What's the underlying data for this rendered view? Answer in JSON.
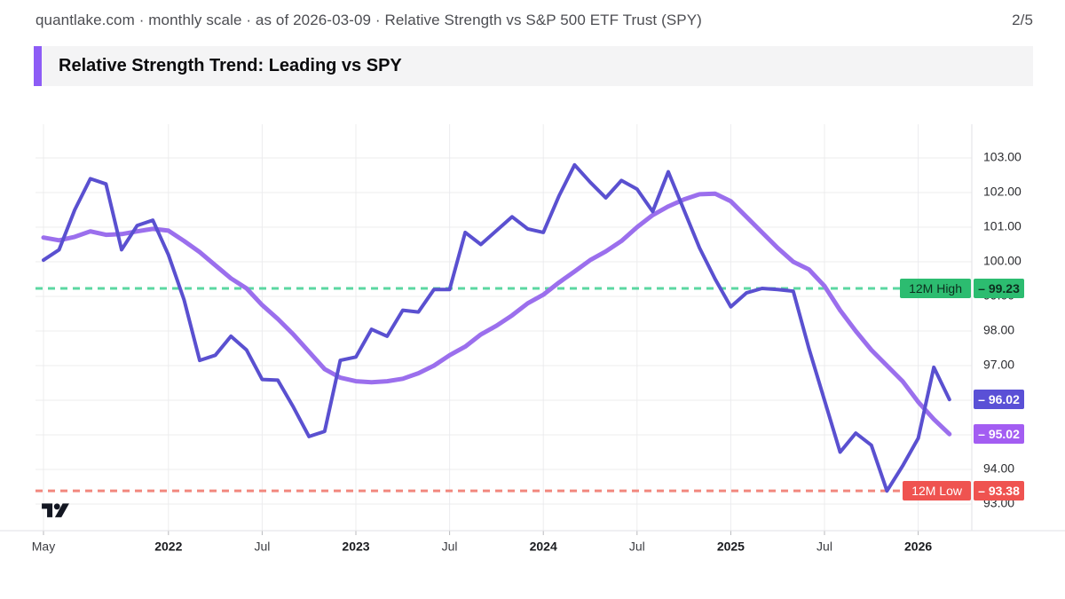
{
  "header": {
    "meta": "quantlake.com · monthly scale · as of 2026-03-09 · Relative Strength vs S&P 500 ETF Trust (SPY)",
    "page_indicator": "2/5"
  },
  "title": {
    "text": "Relative Strength Trend: Leading vs SPY",
    "accent_color": "#8d5cf6"
  },
  "chart_data": {
    "type": "line",
    "title": "Relative Strength vs S&P 500 ETF Trust (SPY), monthly scale",
    "x_start": "2021-05",
    "x_interval": "1M",
    "grid": true,
    "legend": "none",
    "ylim": [
      92.6,
      103.5
    ],
    "y_tick_labels": [
      "103.00",
      "102.00",
      "101.00",
      "100.00",
      "99.00",
      "98.00",
      "97.00",
      "96.00",
      "95.00",
      "94.00",
      "93.00"
    ],
    "x_ticks": [
      {
        "index": 0,
        "label": "May",
        "bold": false
      },
      {
        "index": 8,
        "label": "2022",
        "bold": true
      },
      {
        "index": 14,
        "label": "Jul",
        "bold": false
      },
      {
        "index": 20,
        "label": "2023",
        "bold": true
      },
      {
        "index": 26,
        "label": "Jul",
        "bold": false
      },
      {
        "index": 32,
        "label": "2024",
        "bold": true
      },
      {
        "index": 38,
        "label": "Jul",
        "bold": false
      },
      {
        "index": 44,
        "label": "2025",
        "bold": true
      },
      {
        "index": 50,
        "label": "Jul",
        "bold": false
      },
      {
        "index": 56,
        "label": "2026",
        "bold": true
      }
    ],
    "series": [
      {
        "name": "rs-trend-smoothed",
        "color": "#9b6fed",
        "stroke_width": 5,
        "badge_color": "#a35df2",
        "badge_text_color": "#ffffff",
        "last_value": 95.02,
        "last_value_label": "– 95.02",
        "values": [
          100.7,
          100.62,
          100.72,
          100.88,
          100.78,
          100.8,
          100.88,
          100.95,
          100.9,
          100.6,
          100.28,
          99.9,
          99.52,
          99.23,
          98.75,
          98.35,
          97.9,
          97.4,
          96.9,
          96.65,
          96.55,
          96.52,
          96.55,
          96.62,
          96.78,
          97.0,
          97.3,
          97.55,
          97.9,
          98.15,
          98.45,
          98.8,
          99.05,
          99.4,
          99.72,
          100.05,
          100.3,
          100.6,
          101.0,
          101.35,
          101.6,
          101.8,
          101.95,
          101.97,
          101.75,
          101.3,
          100.85,
          100.4,
          100.0,
          99.78,
          99.3,
          98.6,
          98.0,
          97.45,
          97.0,
          96.55,
          95.95,
          95.45,
          95.02
        ]
      },
      {
        "name": "rs-leading-vs-spy",
        "color": "#5a50d0",
        "stroke_width": 4,
        "badge_color": "#5a50d6",
        "badge_text_color": "#ffffff",
        "last_value": 96.02,
        "last_value_label": "– 96.02",
        "values": [
          100.05,
          100.35,
          101.5,
          102.4,
          102.25,
          100.35,
          101.05,
          101.2,
          100.2,
          98.9,
          97.15,
          97.3,
          97.85,
          97.45,
          96.6,
          96.58,
          95.8,
          94.95,
          95.1,
          97.15,
          97.25,
          98.05,
          97.85,
          98.6,
          98.55,
          99.2,
          99.2,
          100.85,
          100.5,
          100.9,
          101.3,
          100.95,
          100.85,
          101.9,
          102.8,
          102.3,
          101.85,
          102.35,
          102.1,
          101.45,
          102.6,
          101.5,
          100.4,
          99.5,
          98.7,
          99.1,
          99.23,
          99.2,
          99.15,
          97.5,
          96.0,
          94.5,
          95.05,
          94.7,
          93.38,
          94.1,
          94.9,
          96.95,
          96.02
        ]
      }
    ],
    "reference_lines": [
      {
        "name": "twelve-month-high",
        "label": "12M High",
        "value": 99.23,
        "value_label": "– 99.23",
        "line_color": "#5bd7a2",
        "badge_color": "#2cbc70",
        "text_color": "#0d2f1f"
      },
      {
        "name": "twelve-month-low",
        "label": "12M Low",
        "value": 93.38,
        "value_label": "– 93.38",
        "line_color": "#f2887e",
        "badge_color": "#ef5350",
        "text_color": "#ffffff"
      }
    ]
  }
}
